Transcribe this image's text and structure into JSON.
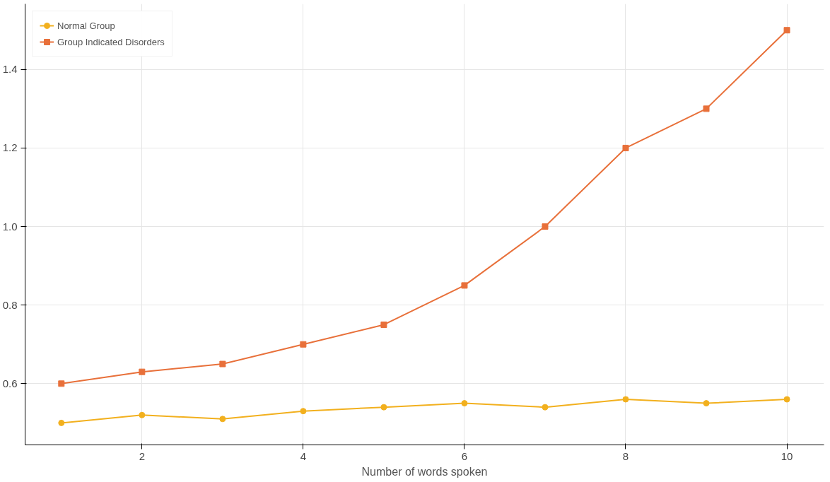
{
  "chart_data": {
    "type": "line",
    "xlabel": "Number of words spoken",
    "x": [
      1,
      2,
      3,
      4,
      5,
      6,
      7,
      8,
      9,
      10
    ],
    "series": [
      {
        "name": "Normal Group",
        "color": "#f2b01e",
        "marker": "circle",
        "values": [
          0.5,
          0.52,
          0.51,
          0.53,
          0.54,
          0.55,
          0.54,
          0.56,
          0.55,
          0.56
        ]
      },
      {
        "name": "Group Indicated Disorders",
        "color": "#e8703a",
        "marker": "square",
        "values": [
          0.6,
          0.63,
          0.65,
          0.7,
          0.75,
          0.85,
          1.0,
          1.2,
          1.3,
          1.5
        ]
      }
    ],
    "xlim": [
      0.55,
      10.46
    ],
    "ylim": [
      0.444,
      1.567
    ],
    "xticks": [
      2,
      4,
      6,
      8,
      10
    ],
    "yticks": [
      0.6,
      0.8,
      {
        "value": 1,
        "label": "1.0"
      },
      1.2,
      1.4
    ],
    "grid": true,
    "legend": "top left",
    "line_style": "solid"
  }
}
